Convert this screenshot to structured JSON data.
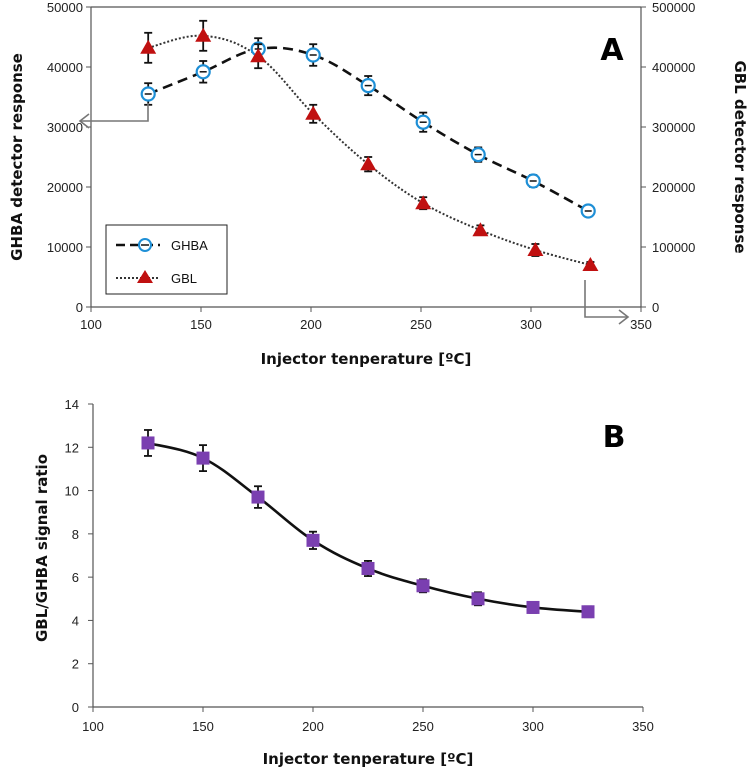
{
  "chart_data": [
    {
      "panel": "A",
      "type": "line",
      "x": [
        125,
        150,
        175,
        200,
        225,
        250,
        275,
        300,
        325
      ],
      "xlabel": "Injector tenperature [ºC]",
      "xlim": [
        100,
        350
      ],
      "xticks": [
        "100",
        "150",
        "200",
        "250",
        "300",
        "350"
      ],
      "ylabel": "GHBA detector response",
      "ylim": [
        0,
        50000
      ],
      "yticks": [
        "0",
        "10000",
        "20000",
        "30000",
        "40000",
        "50000"
      ],
      "y2label": "GBL detector response",
      "y2lim": [
        0,
        500000
      ],
      "y2ticks": [
        "0",
        "100000",
        "200000",
        "300000",
        "400000",
        "500000"
      ],
      "legend_position": "bottom-left",
      "grid": false,
      "series": [
        {
          "name": "GHBA",
          "axis": "left",
          "marker": "open-circle",
          "line": "dashed",
          "color": "#1e8fd6",
          "x": [
            126,
            151,
            176,
            201,
            226,
            251,
            276,
            301,
            326
          ],
          "values": [
            35500,
            39200,
            43000,
            42000,
            36900,
            30800,
            25400,
            21000,
            16000
          ],
          "error": [
            1800,
            1800,
            1800,
            1800,
            1600,
            1600,
            1200,
            1000,
            800
          ]
        },
        {
          "name": "GBL",
          "axis": "right",
          "marker": "triangle",
          "line": "dotted",
          "color": "#c01010",
          "x": [
            126,
            151,
            176,
            201,
            226,
            251,
            277,
            302,
            327
          ],
          "values": [
            432000,
            452000,
            418000,
            322000,
            238000,
            173000,
            128000,
            95000,
            70000
          ],
          "error": [
            25000,
            25000,
            20000,
            15000,
            12000,
            10000,
            8000,
            10000,
            5000
          ]
        }
      ],
      "annotation": "A"
    },
    {
      "panel": "B",
      "type": "line",
      "xlabel": "Injector tenperature [ºC]",
      "xlim": [
        100,
        350
      ],
      "xticks": [
        "100",
        "150",
        "200",
        "250",
        "300",
        "350"
      ],
      "ylabel": "GBL/GHBA signal ratio",
      "ylim": [
        0,
        14
      ],
      "yticks": [
        "0",
        "2",
        "4",
        "6",
        "8",
        "10",
        "12",
        "14"
      ],
      "grid": false,
      "series": [
        {
          "marker": "square",
          "line": "solid",
          "color": "#7a3fb0",
          "x": [
            125,
            150,
            175,
            200,
            225,
            250,
            275,
            300,
            325
          ],
          "values": [
            12.2,
            11.5,
            9.7,
            7.7,
            6.4,
            5.6,
            5.0,
            4.6,
            4.4
          ],
          "error": [
            0.6,
            0.6,
            0.5,
            0.4,
            0.35,
            0.3,
            0.3,
            0.25,
            0.25
          ]
        }
      ],
      "annotation": "B"
    }
  ]
}
